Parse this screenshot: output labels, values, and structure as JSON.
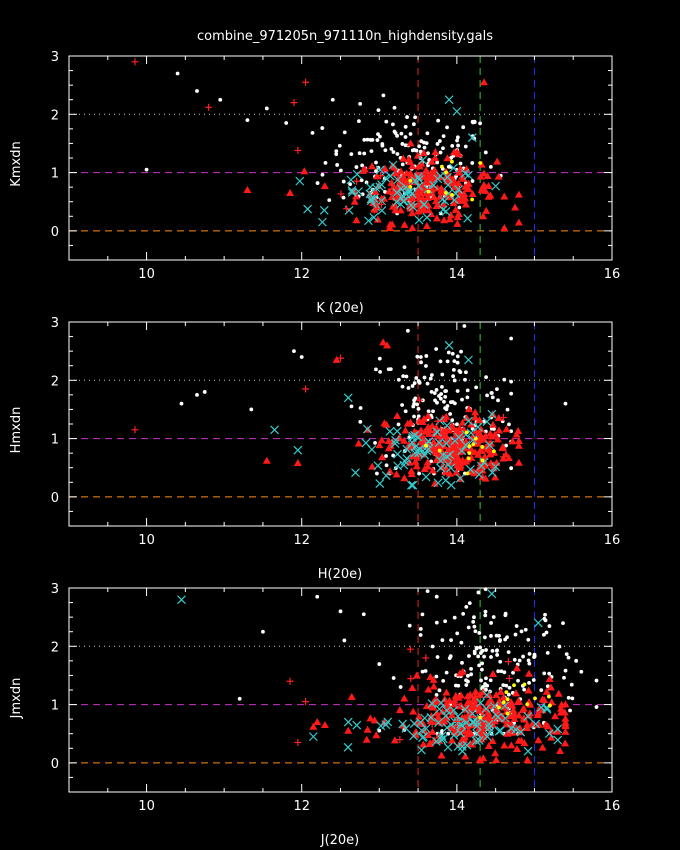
{
  "window_title": "combine_971205n_971110n_highdensity.gals",
  "colors": {
    "background": "#000000",
    "axes": "#ffffff",
    "white_points": "#ffffff",
    "red_triangles": "#ff1a1a",
    "red_plus": "#ff2020",
    "cyan_x": "#33cccc",
    "yellow_points": "#ffff00",
    "ref_orange": "#ff8c1a",
    "ref_magenta": "#cc33cc",
    "ref_gray": "#cccccc",
    "vline_red": "#e02020",
    "vline_green": "#33cc33",
    "vline_blue": "#1a33ff"
  },
  "chart_data": [
    {
      "type": "scatter",
      "title": "combine_971205n_971110n_highdensity.gals",
      "xlabel": "K (20e)",
      "ylabel": "Kmxdn",
      "xlim": [
        9,
        16
      ],
      "ylim": [
        -0.5,
        3
      ],
      "xticks": [
        "10",
        "12",
        "14",
        "16"
      ],
      "yticks": [
        "0",
        "1",
        "2",
        "3"
      ],
      "hlines": [
        0,
        1,
        2
      ],
      "vlines": [
        13.5,
        14.3,
        15.0
      ],
      "series": [
        {
          "marker": "dot",
          "color": "white",
          "center": [
            13.4,
            1.2
          ],
          "spread": [
            0.55,
            0.45
          ],
          "count": 170,
          "xr": [
            11.9,
            14.6
          ],
          "yr": [
            0.3,
            2.75
          ],
          "tail": [
            [
              10.0,
              1.05
            ],
            [
              10.4,
              2.7
            ],
            [
              10.65,
              2.4
            ],
            [
              10.95,
              2.25
            ],
            [
              11.3,
              1.9
            ],
            [
              11.55,
              2.1
            ],
            [
              11.8,
              1.85
            ],
            [
              12.4,
              2.25
            ]
          ]
        },
        {
          "marker": "triangle",
          "color": "red",
          "center": [
            13.6,
            0.7
          ],
          "spread": [
            0.45,
            0.28
          ],
          "count": 230,
          "xr": [
            11.9,
            14.8
          ],
          "yr": [
            0.05,
            1.5
          ],
          "tail": [
            [
              11.3,
              0.7
            ],
            [
              11.85,
              0.65
            ],
            [
              14.35,
              2.55
            ],
            [
              14.75,
              0.4
            ]
          ]
        },
        {
          "marker": "x",
          "color": "cyan",
          "center": [
            13.4,
            0.6
          ],
          "spread": [
            0.5,
            0.25
          ],
          "count": 70,
          "xr": [
            11.8,
            14.5
          ],
          "yr": [
            0.15,
            1.6
          ],
          "tail": [
            [
              13.9,
              2.25
            ],
            [
              14.0,
              2.05
            ],
            [
              14.2,
              1.6
            ]
          ]
        },
        {
          "marker": "plus",
          "color": "red",
          "center": [
            13.0,
            0.8
          ],
          "spread": [
            0.5,
            0.3
          ],
          "count": 10,
          "xr": [
            12.0,
            14.2
          ],
          "yr": [
            0.3,
            1.5
          ],
          "tail": [
            [
              9.85,
              2.9
            ],
            [
              10.8,
              2.12
            ],
            [
              11.9,
              2.2
            ],
            [
              12.05,
              2.55
            ],
            [
              11.95,
              1.38
            ]
          ]
        },
        {
          "marker": "dot",
          "color": "yellow",
          "center": [
            13.9,
            0.9
          ],
          "spread": [
            0.3,
            0.2
          ],
          "count": 10,
          "xr": [
            13.4,
            14.5
          ],
          "yr": [
            0.5,
            1.4
          ],
          "tail": []
        }
      ]
    },
    {
      "type": "scatter",
      "xlabel": "H(20e)",
      "ylabel": "Hmxdn",
      "xlim": [
        9,
        16
      ],
      "ylim": [
        -0.5,
        3
      ],
      "xticks": [
        "10",
        "12",
        "14",
        "16"
      ],
      "yticks": [
        "0",
        "1",
        "2",
        "3"
      ],
      "hlines": [
        0,
        1,
        2
      ],
      "vlines": [
        13.5,
        14.3,
        15.0
      ],
      "series": [
        {
          "marker": "dot",
          "color": "white",
          "center": [
            13.8,
            1.5
          ],
          "spread": [
            0.5,
            0.6
          ],
          "count": 170,
          "xr": [
            12.3,
            14.7
          ],
          "yr": [
            0.4,
            2.95
          ],
          "tail": [
            [
              10.45,
              1.6
            ],
            [
              10.65,
              1.75
            ],
            [
              10.75,
              1.8
            ],
            [
              11.35,
              1.5
            ],
            [
              11.9,
              2.5
            ],
            [
              12.0,
              2.4
            ],
            [
              15.4,
              1.6
            ]
          ]
        },
        {
          "marker": "triangle",
          "color": "red",
          "center": [
            13.9,
            0.85
          ],
          "spread": [
            0.4,
            0.28
          ],
          "count": 240,
          "xr": [
            11.9,
            14.8
          ],
          "yr": [
            0.05,
            1.7
          ],
          "tail": [
            [
              11.55,
              0.62
            ],
            [
              11.95,
              0.58
            ],
            [
              12.45,
              2.35
            ],
            [
              13.1,
              2.6
            ],
            [
              13.05,
              2.65
            ]
          ]
        },
        {
          "marker": "x",
          "color": "cyan",
          "center": [
            13.7,
            0.8
          ],
          "spread": [
            0.45,
            0.3
          ],
          "count": 70,
          "xr": [
            12.0,
            14.5
          ],
          "yr": [
            0.2,
            1.9
          ],
          "tail": [
            [
              11.95,
              0.8
            ],
            [
              11.65,
              1.15
            ],
            [
              12.6,
              1.7
            ],
            [
              14.15,
              2.35
            ],
            [
              13.9,
              2.6
            ]
          ]
        },
        {
          "marker": "plus",
          "color": "red",
          "center": [
            13.8,
            1.0
          ],
          "spread": [
            0.4,
            0.3
          ],
          "count": 10,
          "xr": [
            12.5,
            14.6
          ],
          "yr": [
            0.4,
            1.8
          ],
          "tail": [
            [
              9.85,
              1.15
            ],
            [
              12.05,
              1.85
            ],
            [
              12.5,
              2.38
            ]
          ]
        },
        {
          "marker": "dot",
          "color": "yellow",
          "center": [
            14.1,
            0.8
          ],
          "spread": [
            0.25,
            0.2
          ],
          "count": 12,
          "xr": [
            13.6,
            14.6
          ],
          "yr": [
            0.4,
            1.3
          ],
          "tail": []
        }
      ]
    },
    {
      "type": "scatter",
      "xlabel": "J(20e)",
      "ylabel": "Jmxdn",
      "xlim": [
        9,
        16
      ],
      "ylim": [
        -0.5,
        3
      ],
      "xticks": [
        "10",
        "12",
        "14",
        "16"
      ],
      "yticks": [
        "0",
        "1",
        "2",
        "3"
      ],
      "hlines": [
        0,
        1,
        2
      ],
      "vlines": [
        13.5,
        14.3,
        15.0
      ],
      "series": [
        {
          "marker": "dot",
          "color": "white",
          "center": [
            14.5,
            1.6
          ],
          "spread": [
            0.55,
            0.6
          ],
          "count": 190,
          "xr": [
            13.0,
            15.8
          ],
          "yr": [
            0.5,
            2.98
          ],
          "tail": [
            [
              11.2,
              1.1
            ],
            [
              11.5,
              2.25
            ],
            [
              12.2,
              2.85
            ],
            [
              12.5,
              2.6
            ],
            [
              12.8,
              2.55
            ],
            [
              12.55,
              2.1
            ]
          ]
        },
        {
          "marker": "triangle",
          "color": "red",
          "center": [
            14.3,
            0.75
          ],
          "spread": [
            0.55,
            0.3
          ],
          "count": 260,
          "xr": [
            12.1,
            15.4
          ],
          "yr": [
            0.05,
            2.7
          ],
          "tail": [
            [
              12.15,
              0.62
            ],
            [
              12.3,
              0.65
            ],
            [
              12.2,
              0.7
            ],
            [
              12.6,
              0.55
            ]
          ]
        },
        {
          "marker": "x",
          "color": "cyan",
          "center": [
            14.0,
            0.65
          ],
          "spread": [
            0.55,
            0.25
          ],
          "count": 80,
          "xr": [
            12.1,
            15.3
          ],
          "yr": [
            0.2,
            1.6
          ],
          "tail": [
            [
              10.45,
              2.8
            ],
            [
              12.15,
              0.45
            ],
            [
              12.6,
              0.7
            ],
            [
              14.45,
              2.9
            ],
            [
              15.05,
              2.4
            ]
          ]
        },
        {
          "marker": "plus",
          "color": "red",
          "center": [
            14.0,
            1.0
          ],
          "spread": [
            0.5,
            0.35
          ],
          "count": 10,
          "xr": [
            12.9,
            15.0
          ],
          "yr": [
            0.4,
            2.0
          ],
          "tail": [
            [
              11.85,
              1.4
            ],
            [
              11.95,
              0.35
            ],
            [
              12.05,
              1.05
            ],
            [
              13.4,
              1.95
            ],
            [
              13.6,
              1.8
            ]
          ]
        },
        {
          "marker": "dot",
          "color": "yellow",
          "center": [
            14.7,
            0.9
          ],
          "spread": [
            0.3,
            0.25
          ],
          "count": 12,
          "xr": [
            14.0,
            15.2
          ],
          "yr": [
            0.5,
            1.4
          ],
          "tail": []
        }
      ]
    }
  ]
}
